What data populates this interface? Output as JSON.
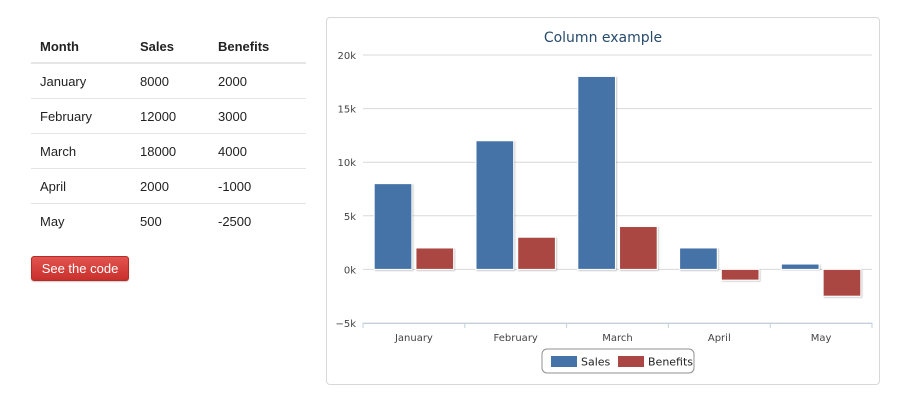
{
  "table": {
    "headers": [
      "Month",
      "Sales",
      "Benefits"
    ],
    "rows": [
      [
        "January",
        "8000",
        "2000"
      ],
      [
        "February",
        "12000",
        "3000"
      ],
      [
        "March",
        "18000",
        "4000"
      ],
      [
        "April",
        "2000",
        "-1000"
      ],
      [
        "May",
        "500",
        "-2500"
      ]
    ]
  },
  "button": {
    "label": "See the code"
  },
  "colors": {
    "sales": "#4572a7",
    "benefits": "#aa4643",
    "button": "#d9534f",
    "grid": "#d8d8d8"
  },
  "chart_data": {
    "type": "bar",
    "title": "Column example",
    "categories": [
      "January",
      "February",
      "March",
      "April",
      "May"
    ],
    "series": [
      {
        "name": "Sales",
        "values": [
          8000,
          12000,
          18000,
          2000,
          500
        ]
      },
      {
        "name": "Benefits",
        "values": [
          2000,
          3000,
          4000,
          -1000,
          -2500
        ]
      }
    ],
    "ylim": [
      -5000,
      20000
    ],
    "yticks": [
      {
        "value": 20000,
        "label": "20k"
      },
      {
        "value": 15000,
        "label": "15k"
      },
      {
        "value": 10000,
        "label": "10k"
      },
      {
        "value": 5000,
        "label": "5k"
      },
      {
        "value": 0,
        "label": "0k"
      },
      {
        "value": -5000,
        "label": "−5k"
      }
    ],
    "grid": true,
    "legend": "bottom-center"
  }
}
